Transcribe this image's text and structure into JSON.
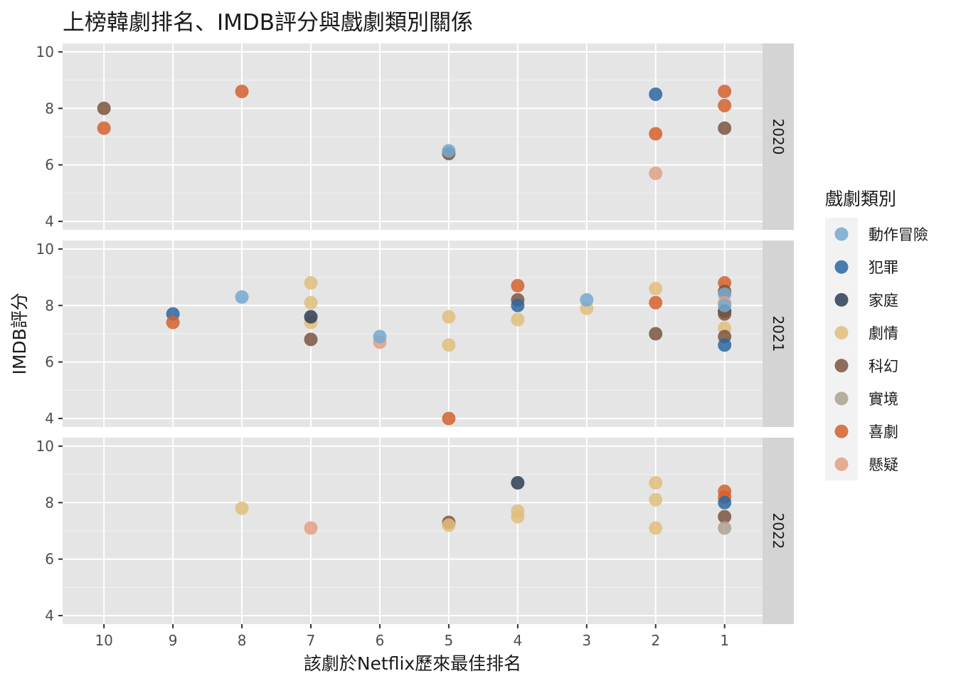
{
  "chart_data": {
    "type": "scatter",
    "title": "上榜韓劇排名、IMDB評分與戲劇類別關係",
    "xlabel": "該劇於Netflix歷來最佳排名",
    "ylabel": "IMDB評分",
    "x_ticks": [
      10,
      9,
      8,
      7,
      6,
      5,
      4,
      3,
      2,
      1
    ],
    "x_reversed": true,
    "xlim": [
      10.6,
      0.45
    ],
    "ylim": [
      3.7,
      10.3
    ],
    "y_ticks": [
      4,
      6,
      8,
      10
    ],
    "grid": true,
    "legend": {
      "title": "戲劇類別",
      "position": "right",
      "items": [
        {
          "name": "動作冒險",
          "color": "#74A9CF"
        },
        {
          "name": "犯罪",
          "color": "#2C67A0"
        },
        {
          "name": "家庭",
          "color": "#2B3D54"
        },
        {
          "name": "劇情",
          "color": "#E0BE7D"
        },
        {
          "name": "科幻",
          "color": "#7D5540"
        },
        {
          "name": "實境",
          "color": "#ADA290"
        },
        {
          "name": "喜劇",
          "color": "#D3612E"
        },
        {
          "name": "懸疑",
          "color": "#E29F85"
        }
      ]
    },
    "panels": [
      {
        "strip": "2020",
        "points": [
          {
            "x": 10,
            "y": 8.0,
            "genre": "科幻"
          },
          {
            "x": 10,
            "y": 7.3,
            "genre": "喜劇"
          },
          {
            "x": 8,
            "y": 8.6,
            "genre": "喜劇"
          },
          {
            "x": 5,
            "y": 6.4,
            "genre": "科幻"
          },
          {
            "x": 5,
            "y": 6.5,
            "genre": "動作冒險"
          },
          {
            "x": 2,
            "y": 8.5,
            "genre": "犯罪"
          },
          {
            "x": 2,
            "y": 7.1,
            "genre": "喜劇"
          },
          {
            "x": 2,
            "y": 5.7,
            "genre": "懸疑"
          },
          {
            "x": 1,
            "y": 8.6,
            "genre": "喜劇"
          },
          {
            "x": 1,
            "y": 8.1,
            "genre": "喜劇"
          },
          {
            "x": 1,
            "y": 7.3,
            "genre": "科幻"
          }
        ]
      },
      {
        "strip": "2021",
        "points": [
          {
            "x": 9,
            "y": 7.7,
            "genre": "犯罪"
          },
          {
            "x": 9,
            "y": 7.4,
            "genre": "喜劇"
          },
          {
            "x": 8,
            "y": 8.3,
            "genre": "動作冒險"
          },
          {
            "x": 7,
            "y": 8.8,
            "genre": "劇情"
          },
          {
            "x": 7,
            "y": 8.1,
            "genre": "劇情"
          },
          {
            "x": 7,
            "y": 7.4,
            "genre": "劇情"
          },
          {
            "x": 7,
            "y": 7.6,
            "genre": "家庭"
          },
          {
            "x": 7,
            "y": 6.8,
            "genre": "科幻"
          },
          {
            "x": 6,
            "y": 6.7,
            "genre": "懸疑"
          },
          {
            "x": 6,
            "y": 6.9,
            "genre": "動作冒險"
          },
          {
            "x": 5,
            "y": 7.6,
            "genre": "劇情"
          },
          {
            "x": 5,
            "y": 6.6,
            "genre": "劇情"
          },
          {
            "x": 5,
            "y": 4.0,
            "genre": "喜劇"
          },
          {
            "x": 4,
            "y": 8.7,
            "genre": "喜劇"
          },
          {
            "x": 4,
            "y": 8.2,
            "genre": "科幻"
          },
          {
            "x": 4,
            "y": 8.0,
            "genre": "犯罪"
          },
          {
            "x": 4,
            "y": 7.5,
            "genre": "劇情"
          },
          {
            "x": 3,
            "y": 7.9,
            "genre": "劇情"
          },
          {
            "x": 3,
            "y": 8.2,
            "genre": "動作冒險"
          },
          {
            "x": 2,
            "y": 8.6,
            "genre": "劇情"
          },
          {
            "x": 2,
            "y": 8.1,
            "genre": "喜劇"
          },
          {
            "x": 2,
            "y": 7.0,
            "genre": "科幻"
          },
          {
            "x": 1,
            "y": 8.8,
            "genre": "喜劇"
          },
          {
            "x": 1,
            "y": 8.5,
            "genre": "科幻"
          },
          {
            "x": 1,
            "y": 8.4,
            "genre": "動作冒險"
          },
          {
            "x": 1,
            "y": 8.1,
            "genre": "懸疑"
          },
          {
            "x": 1,
            "y": 7.8,
            "genre": "家庭"
          },
          {
            "x": 1,
            "y": 7.7,
            "genre": "科幻"
          },
          {
            "x": 1,
            "y": 8.0,
            "genre": "動作冒險"
          },
          {
            "x": 1,
            "y": 7.2,
            "genre": "劇情"
          },
          {
            "x": 1,
            "y": 6.9,
            "genre": "科幻"
          },
          {
            "x": 1,
            "y": 6.6,
            "genre": "犯罪"
          }
        ]
      },
      {
        "strip": "2022",
        "points": [
          {
            "x": 8,
            "y": 7.8,
            "genre": "劇情"
          },
          {
            "x": 7,
            "y": 7.1,
            "genre": "懸疑"
          },
          {
            "x": 5,
            "y": 7.3,
            "genre": "科幻"
          },
          {
            "x": 5,
            "y": 7.2,
            "genre": "劇情"
          },
          {
            "x": 4,
            "y": 8.7,
            "genre": "家庭"
          },
          {
            "x": 4,
            "y": 7.7,
            "genre": "劇情"
          },
          {
            "x": 4,
            "y": 7.5,
            "genre": "劇情"
          },
          {
            "x": 2,
            "y": 8.7,
            "genre": "劇情"
          },
          {
            "x": 2,
            "y": 8.1,
            "genre": "劇情"
          },
          {
            "x": 2,
            "y": 7.1,
            "genre": "劇情"
          },
          {
            "x": 1,
            "y": 8.4,
            "genre": "喜劇"
          },
          {
            "x": 1,
            "y": 8.2,
            "genre": "喜劇"
          },
          {
            "x": 1,
            "y": 8.0,
            "genre": "犯罪"
          },
          {
            "x": 1,
            "y": 7.5,
            "genre": "科幻"
          },
          {
            "x": 1,
            "y": 7.1,
            "genre": "實境"
          }
        ]
      }
    ]
  }
}
